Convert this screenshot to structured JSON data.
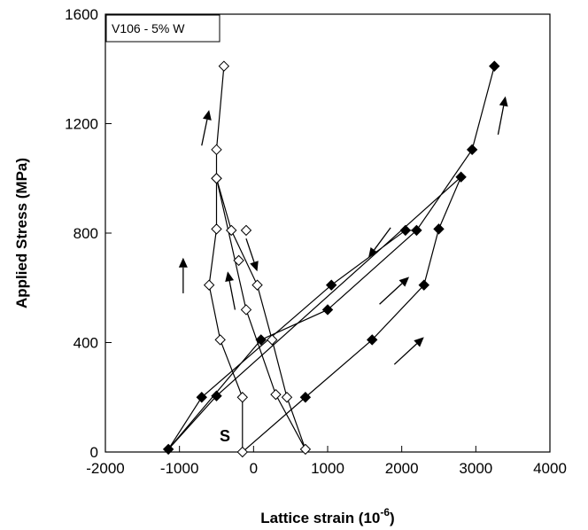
{
  "chart_data": {
    "type": "scatter",
    "title": "",
    "xlabel": "Lattice strain (10",
    "xlabel_sup": "-6",
    "xlabel_close": ")",
    "ylabel": "Applied Stress (MPa)",
    "xlim": [
      -2000,
      4000
    ],
    "ylim": [
      0,
      1600
    ],
    "xticks": [
      -2000,
      -1000,
      0,
      1000,
      2000,
      3000,
      4000
    ],
    "yticks": [
      0,
      400,
      800,
      1200,
      1600
    ],
    "xtick_labels": [
      "-2000",
      "-1000",
      "0",
      "1000",
      "2000",
      "3000",
      "4000"
    ],
    "ytick_labels": [
      "0",
      "400",
      "800",
      "1200",
      "1600"
    ],
    "grid": false,
    "legend_box": "V106 - 5% W",
    "annotation": "S",
    "colors": {
      "open": "#ffffff",
      "filled": "#000000",
      "line": "#000000"
    },
    "series": [
      {
        "marker": "open-diamond",
        "points": [
          [
            -150,
            0
          ],
          [
            -150,
            200
          ],
          [
            -450,
            410
          ],
          [
            -600,
            610
          ],
          [
            -500,
            815
          ],
          [
            -500,
            1000
          ],
          [
            -500,
            1105
          ],
          [
            -400,
            1410
          ],
          [
            -500,
            1000
          ],
          [
            -300,
            810
          ],
          [
            -100,
            520
          ],
          [
            50,
            610
          ],
          [
            250,
            410
          ],
          [
            300,
            210
          ],
          [
            450,
            200
          ],
          [
            700,
            10
          ],
          [
            -100,
            810
          ],
          [
            -200,
            700
          ]
        ],
        "paths": [
          [
            [
              -150,
              0
            ],
            [
              -150,
              200
            ],
            [
              -450,
              410
            ],
            [
              -600,
              610
            ],
            [
              -500,
              815
            ],
            [
              -500,
              1000
            ],
            [
              -500,
              1105
            ],
            [
              -400,
              1410
            ]
          ],
          [
            [
              -500,
              1000
            ],
            [
              -300,
              810
            ],
            [
              50,
              610
            ],
            [
              250,
              410
            ],
            [
              450,
              200
            ],
            [
              700,
              10
            ]
          ],
          [
            [
              700,
              10
            ],
            [
              300,
              210
            ],
            [
              -100,
              520
            ],
            [
              -500,
              1000
            ]
          ]
        ]
      },
      {
        "marker": "filled-diamond",
        "points": [
          [
            -1150,
            10
          ],
          [
            -700,
            200
          ],
          [
            -500,
            205
          ],
          [
            100,
            410
          ],
          [
            1000,
            520
          ],
          [
            1050,
            610
          ],
          [
            2050,
            810
          ],
          [
            2200,
            810
          ],
          [
            2800,
            1005
          ],
          [
            2950,
            1105
          ],
          [
            3250,
            1410
          ],
          [
            2500,
            815
          ],
          [
            2300,
            610
          ],
          [
            1600,
            410
          ],
          [
            700,
            200
          ]
        ],
        "paths": [
          [
            [
              -150,
              0
            ],
            [
              700,
              200
            ],
            [
              1600,
              410
            ],
            [
              2300,
              610
            ],
            [
              2500,
              815
            ],
            [
              2800,
              1005
            ]
          ],
          [
            [
              2800,
              1005
            ],
            [
              -500,
              205
            ],
            [
              -1150,
              10
            ],
            [
              -700,
              200
            ],
            [
              1050,
              610
            ],
            [
              2050,
              810
            ],
            [
              2200,
              810
            ],
            [
              2950,
              1105
            ],
            [
              3250,
              1410
            ]
          ],
          [
            [
              2200,
              810
            ],
            [
              1000,
              520
            ],
            [
              100,
              410
            ],
            [
              -1150,
              10
            ]
          ]
        ]
      }
    ],
    "arrows": [
      [
        [
          -700,
          1120
        ],
        [
          -600,
          1250
        ]
      ],
      [
        [
          -950,
          580
        ],
        [
          -950,
          710
        ]
      ],
      [
        [
          -250,
          520
        ],
        [
          -350,
          660
        ]
      ],
      [
        [
          -100,
          780
        ],
        [
          50,
          660
        ]
      ],
      [
        [
          1850,
          820
        ],
        [
          1550,
          710
        ]
      ],
      [
        [
          1700,
          540
        ],
        [
          2100,
          640
        ]
      ],
      [
        [
          1900,
          320
        ],
        [
          2300,
          420
        ]
      ],
      [
        [
          3300,
          1160
        ],
        [
          3400,
          1300
        ]
      ]
    ]
  }
}
